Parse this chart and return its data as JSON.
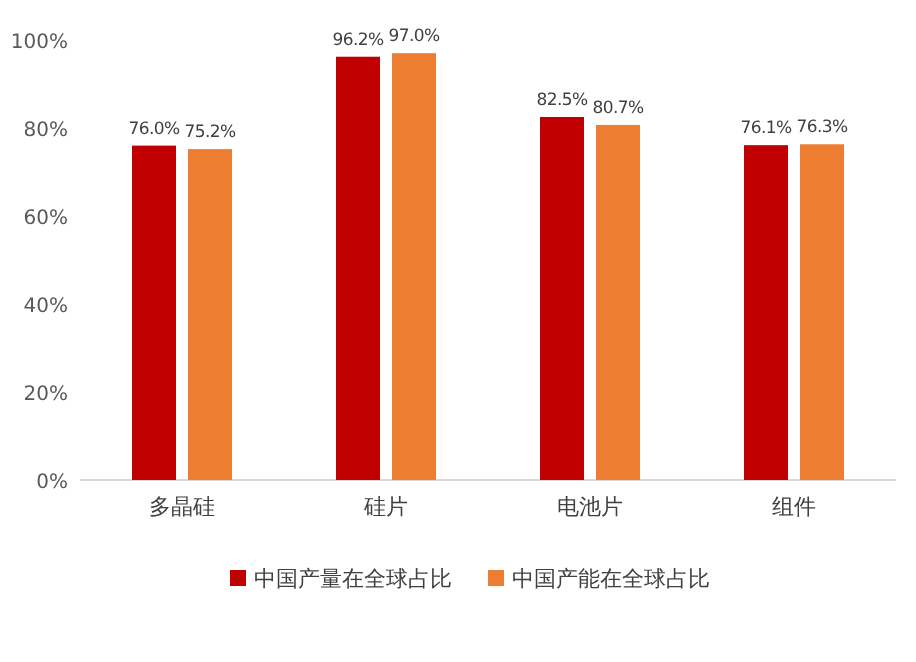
{
  "chart_data": {
    "type": "bar",
    "categories": [
      "多晶硅",
      "硅片",
      "电池片",
      "组件"
    ],
    "series": [
      {
        "name": "中国产量在全球占比",
        "color": "#c00000",
        "values": [
          76.0,
          96.2,
          82.5,
          76.1
        ],
        "value_labels": [
          "76.0%",
          "96.2%",
          "82.5%",
          "76.1%"
        ]
      },
      {
        "name": "中国产能在全球占比",
        "color": "#ed7d31",
        "values": [
          75.2,
          97.0,
          80.7,
          76.3
        ],
        "value_labels": [
          "75.2%",
          "97.0%",
          "80.7%",
          "76.3%"
        ]
      }
    ],
    "ylim": [
      0,
      100
    ],
    "yticks": [
      {
        "value": 0,
        "label": "0%"
      },
      {
        "value": 20,
        "label": "20%"
      },
      {
        "value": 40,
        "label": "40%"
      },
      {
        "value": 60,
        "label": "60%"
      },
      {
        "value": 80,
        "label": "80%"
      },
      {
        "value": 100,
        "label": "100%"
      }
    ],
    "legend": "bottom"
  }
}
